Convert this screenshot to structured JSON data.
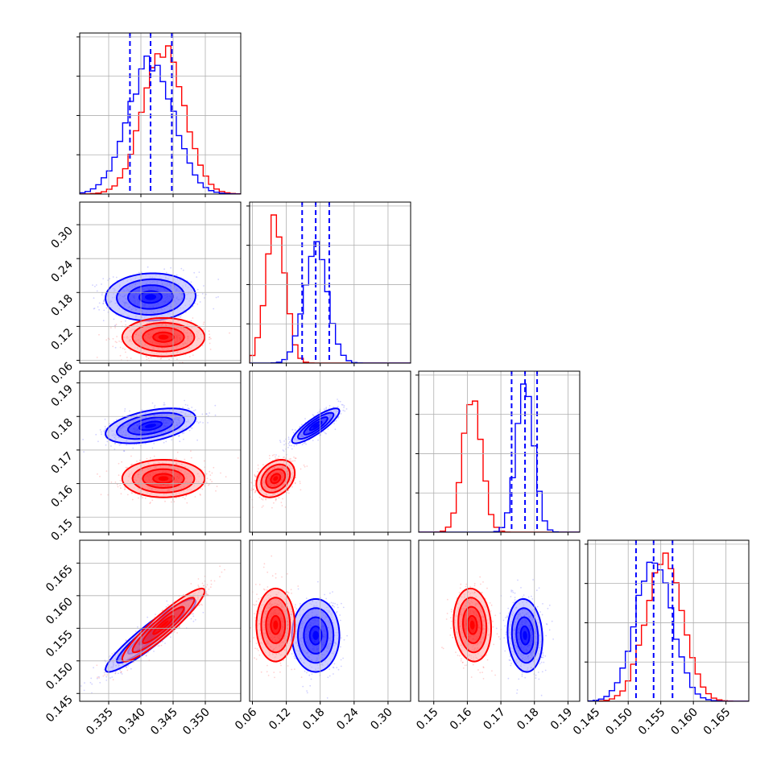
{
  "chart_data": {
    "type": "corner",
    "grid": true,
    "legend": "none",
    "colors": {
      "series_a": "#0000ff",
      "series_b": "#ff0000"
    },
    "series": [
      {
        "color": "#0000ff",
        "means": [
          0.3415,
          0.172,
          0.1772,
          0.1539
        ],
        "sd": [
          0.0035,
          0.021,
          0.0026,
          0.0028
        ],
        "quantiles": [
          [
            0.3383,
            0.3415,
            0.3448
          ],
          [
            0.148,
            0.172,
            0.196
          ],
          [
            0.1732,
            0.1772,
            0.1808
          ],
          [
            0.1512,
            0.1539,
            0.1568
          ]
        ]
      },
      {
        "color": "#ff0000",
        "means": [
          0.3435,
          0.101,
          0.1615,
          0.1555
        ],
        "sd": [
          0.0032,
          0.017,
          0.0028,
          0.0028
        ]
      }
    ],
    "params": [
      {
        "range": [
          0.3305,
          0.3555
        ],
        "ticks": [
          0.335,
          0.34,
          0.345,
          0.35
        ],
        "tick_labels": [
          "0.335",
          "0.340",
          "0.345",
          "0.350"
        ]
      },
      {
        "range": [
          0.055,
          0.34
        ],
        "ticks": [
          0.06,
          0.12,
          0.18,
          0.24,
          0.3
        ],
        "tick_labels": [
          "0.06",
          "0.12",
          "0.18",
          "0.24",
          "0.30"
        ]
      },
      {
        "range": [
          0.1455,
          0.1935
        ],
        "ticks": [
          0.15,
          0.16,
          0.17,
          0.18,
          0.19
        ],
        "tick_labels": [
          "0.15",
          "0.16",
          "0.17",
          "0.18",
          "0.19"
        ]
      },
      {
        "range": [
          0.1438,
          0.1685
        ],
        "ticks": [
          0.145,
          0.15,
          0.155,
          0.16,
          0.165
        ],
        "tick_labels": [
          "0.145",
          "0.150",
          "0.155",
          "0.160",
          "0.165"
        ]
      }
    ],
    "correlations": [
      {
        "pair": [
          1,
          0
        ],
        "blue": 0.05,
        "red": 0.0
      },
      {
        "pair": [
          2,
          0
        ],
        "blue": 0.45,
        "red": 0.0
      },
      {
        "pair": [
          2,
          1
        ],
        "blue": 0.85,
        "red": 0.3
      },
      {
        "pair": [
          3,
          0
        ],
        "blue": 0.93,
        "red": 0.93
      },
      {
        "pair": [
          3,
          1
        ],
        "blue": 0.0,
        "red": 0.0
      },
      {
        "pair": [
          3,
          2
        ],
        "blue": -0.1,
        "red": -0.1
      }
    ]
  }
}
